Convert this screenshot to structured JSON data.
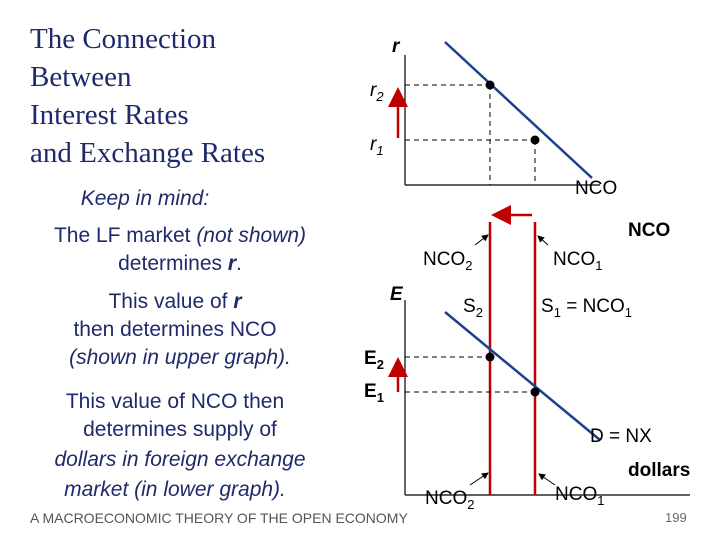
{
  "slide": {
    "title": [
      "The Connection",
      "Between",
      "Interest Rates",
      "and Exchange Rates"
    ],
    "notes": {
      "heading": "Keep in mind:",
      "line1": {
        "normal": "The LF market",
        "italic": " (not shown)"
      },
      "line2": {
        "normal": "determines ",
        "bold": "r",
        "end": "."
      },
      "line3": {
        "normal": "This value of ",
        "bold": "r"
      },
      "line4": "then determines NCO",
      "line5": "(shown in upper graph).",
      "line6": "This value of NCO then",
      "line7": "determines supply of",
      "line8": "dollars in foreign exchange",
      "line9": {
        "normal": "market",
        "italic": " (in lower graph)."
      }
    },
    "upper_graph": {
      "y_axis_label": "r",
      "r2": {
        "base": "r",
        "sub": "2"
      },
      "r1": {
        "base": "r",
        "sub": "1"
      },
      "x_axis_label": "NCO"
    },
    "lower_graph": {
      "y_axis_label": "E",
      "x_axis_label_top": "NCO",
      "nco2": {
        "base": "NCO",
        "sub": "2"
      },
      "nco1": {
        "base": "NCO",
        "sub": "1"
      },
      "s2": {
        "base": "S",
        "sub": "2"
      },
      "s1": {
        "base": "S",
        "sub": "1",
        "rest": " = NCO",
        "sub2": "1"
      },
      "e2": {
        "base": "E",
        "sub": "2"
      },
      "e1": {
        "base": "E",
        "sub": "1"
      },
      "demand": "D = NX",
      "x_axis_label": "dollars",
      "nco2_bottom": {
        "base": "NCO",
        "sub": "2"
      },
      "nco1_bottom": {
        "base": "NCO",
        "sub": "1"
      }
    },
    "footer": "A MACROECONOMIC THEORY OF THE OPEN ECONOMY",
    "page_number": "199"
  }
}
